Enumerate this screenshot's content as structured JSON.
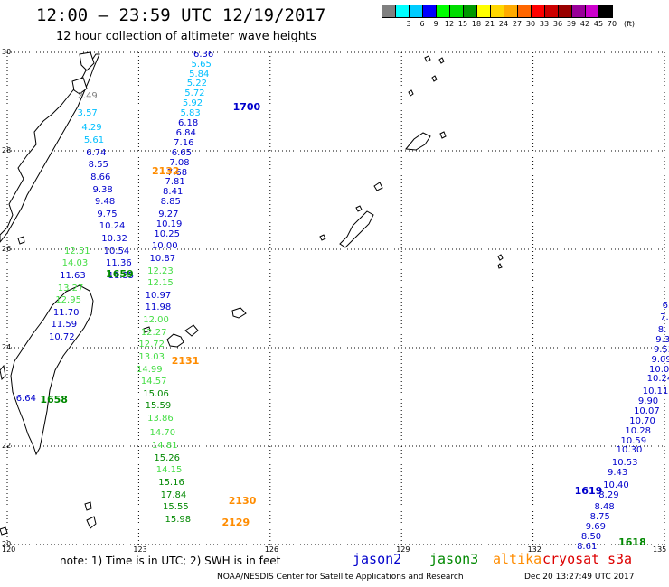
{
  "title": "12:00 — 23:59 UTC 12/19/2017",
  "subtitle": "12 hour collection of altimeter wave heights",
  "legend": {
    "unit": "(ft)",
    "levels": [
      {
        "label": "",
        "color": "#808080"
      },
      {
        "label": "3",
        "color": "#00ffff"
      },
      {
        "label": "6",
        "color": "#00ccff"
      },
      {
        "label": "9",
        "color": "#0000ff"
      },
      {
        "label": "12",
        "color": "#00ff00"
      },
      {
        "label": "15",
        "color": "#00dd00"
      },
      {
        "label": "18",
        "color": "#009900"
      },
      {
        "label": "21",
        "color": "#ffff00"
      },
      {
        "label": "24",
        "color": "#ffd700"
      },
      {
        "label": "27",
        "color": "#ffaa00"
      },
      {
        "label": "30",
        "color": "#ff6600"
      },
      {
        "label": "33",
        "color": "#ff0000"
      },
      {
        "label": "36",
        "color": "#cc0000"
      },
      {
        "label": "39",
        "color": "#990000"
      },
      {
        "label": "42",
        "color": "#990099"
      },
      {
        "label": "45",
        "color": "#cc00cc"
      },
      {
        "label": "70",
        "color": "#000000"
      }
    ]
  },
  "axes": {
    "x_ticks": [
      "120",
      "123",
      "126",
      "129",
      "132",
      "135"
    ],
    "y_ticks": [
      "30",
      "28",
      "26",
      "24",
      "22",
      "20"
    ],
    "lon_range": [
      120,
      135
    ],
    "lat_range": [
      20,
      30
    ],
    "grid": "dotted"
  },
  "colors": {
    "band_0_3": "#808080",
    "band_3_6": "#00bfff",
    "band_6_12": "#0000cc",
    "band_12_15": "#44dd44",
    "band_15_18": "#008800",
    "time_jason2": "#0000cc",
    "time_jason3": "#008800",
    "time_altika": "#ff8c00"
  },
  "tracks": [
    {
      "satellite": "jason2",
      "time_label": {
        "text": "1700",
        "lon": 125.15,
        "lat": 28.9
      },
      "points": [
        {
          "lon": 124.25,
          "lat": 29.95,
          "value": "6.36"
        },
        {
          "lon": 124.2,
          "lat": 29.75,
          "value": "5.65"
        },
        {
          "lon": 124.15,
          "lat": 29.55,
          "value": "5.84"
        },
        {
          "lon": 124.1,
          "lat": 29.35,
          "value": "5.22"
        },
        {
          "lon": 124.05,
          "lat": 29.15,
          "value": "5.72"
        },
        {
          "lon": 124.0,
          "lat": 28.95,
          "value": "5.92"
        },
        {
          "lon": 123.95,
          "lat": 28.75,
          "value": "5.83"
        },
        {
          "lon": 123.9,
          "lat": 28.55,
          "value": "6.18"
        },
        {
          "lon": 123.85,
          "lat": 28.35,
          "value": "6.84"
        },
        {
          "lon": 123.8,
          "lat": 28.15,
          "value": "7.16"
        },
        {
          "lon": 123.75,
          "lat": 27.95,
          "value": "6.65"
        },
        {
          "lon": 123.7,
          "lat": 27.75,
          "value": "7.08"
        },
        {
          "lon": 123.65,
          "lat": 27.55,
          "value": "7.68"
        },
        {
          "lon": 123.6,
          "lat": 27.35,
          "value": "7.81"
        },
        {
          "lon": 123.55,
          "lat": 27.15,
          "value": "8.41"
        },
        {
          "lon": 123.5,
          "lat": 26.95,
          "value": "8.85"
        },
        {
          "lon": 123.45,
          "lat": 26.7,
          "value": "9.27"
        },
        {
          "lon": 123.4,
          "lat": 26.5,
          "value": "10.19"
        },
        {
          "lon": 123.35,
          "lat": 26.3,
          "value": "10.25"
        },
        {
          "lon": 123.3,
          "lat": 26.05,
          "value": "10.00"
        },
        {
          "lon": 123.25,
          "lat": 25.8,
          "value": "10.87"
        },
        {
          "lon": 123.2,
          "lat": 25.55,
          "value": "12.23"
        },
        {
          "lon": 123.2,
          "lat": 25.3,
          "value": "12.15"
        },
        {
          "lon": 123.15,
          "lat": 25.05,
          "value": "10.97"
        },
        {
          "lon": 123.15,
          "lat": 24.8,
          "value": "11.98"
        },
        {
          "lon": 123.1,
          "lat": 24.55,
          "value": "12.00"
        },
        {
          "lon": 123.05,
          "lat": 24.3,
          "value": "12.27"
        },
        {
          "lon": 123.0,
          "lat": 24.05,
          "value": "12.72"
        },
        {
          "lon": 123.0,
          "lat": 23.8,
          "value": "13.03"
        },
        {
          "lon": 122.95,
          "lat": 23.55,
          "value": "14.99"
        }
      ]
    },
    {
      "satellite": "altika",
      "time_label": {
        "text": "2132",
        "lon": 123.3,
        "lat": 27.6
      },
      "points": [
        {
          "lon": 121.6,
          "lat": 29.1,
          "value": "2.49"
        },
        {
          "lon": 121.6,
          "lat": 28.75,
          "value": "3.57"
        },
        {
          "lon": 121.7,
          "lat": 28.45,
          "value": "4.29"
        },
        {
          "lon": 121.75,
          "lat": 28.2,
          "value": "5.61"
        },
        {
          "lon": 121.8,
          "lat": 27.95,
          "value": "6.74"
        },
        {
          "lon": 121.85,
          "lat": 27.7,
          "value": "8.55"
        },
        {
          "lon": 121.9,
          "lat": 27.45,
          "value": "8.66"
        },
        {
          "lon": 121.95,
          "lat": 27.2,
          "value": "9.38"
        },
        {
          "lon": 122.0,
          "lat": 26.95,
          "value": "9.48"
        },
        {
          "lon": 122.05,
          "lat": 26.7,
          "value": "9.75"
        },
        {
          "lon": 122.1,
          "lat": 26.45,
          "value": "10.24"
        },
        {
          "lon": 122.15,
          "lat": 26.2,
          "value": "10.32"
        },
        {
          "lon": 122.2,
          "lat": 25.95,
          "value": "10.54"
        },
        {
          "lon": 122.25,
          "lat": 25.7,
          "value": "11.36"
        },
        {
          "lon": 122.3,
          "lat": 25.45,
          "value": "11.35"
        }
      ]
    },
    {
      "satellite": "jason3",
      "time_label": {
        "text": "1659",
        "lon": 122.25,
        "lat": 25.5
      },
      "points": [
        {
          "lon": 121.3,
          "lat": 25.95,
          "value": "12.51"
        },
        {
          "lon": 121.25,
          "lat": 25.7,
          "value": "14.03"
        },
        {
          "lon": 121.2,
          "lat": 25.45,
          "value": "11.63"
        },
        {
          "lon": 121.15,
          "lat": 25.2,
          "value": "13.27"
        },
        {
          "lon": 121.1,
          "lat": 24.95,
          "value": "12.95"
        },
        {
          "lon": 121.05,
          "lat": 24.7,
          "value": "11.70"
        },
        {
          "lon": 121.0,
          "lat": 24.45,
          "value": "11.59"
        },
        {
          "lon": 120.95,
          "lat": 24.2,
          "value": "10.72"
        }
      ]
    },
    {
      "satellite": "jason3",
      "time_label": {
        "text": "1658",
        "lon": 120.75,
        "lat": 22.95
      },
      "points": [
        {
          "lon": 120.2,
          "lat": 22.95,
          "value": "6.64"
        }
      ]
    },
    {
      "satellite": "altika",
      "time_label": {
        "text": "2131",
        "lon": 123.75,
        "lat": 23.75
      },
      "points": [
        {
          "lon": 123.05,
          "lat": 23.3,
          "value": "14.57"
        },
        {
          "lon": 123.1,
          "lat": 23.05,
          "value": "15.06"
        },
        {
          "lon": 123.15,
          "lat": 22.8,
          "value": "15.59"
        },
        {
          "lon": 123.2,
          "lat": 22.55,
          "value": "13.86"
        },
        {
          "lon": 123.25,
          "lat": 22.25,
          "value": "14.70"
        },
        {
          "lon": 123.3,
          "lat": 22.0,
          "value": "14.81"
        },
        {
          "lon": 123.35,
          "lat": 21.75,
          "value": "15.26"
        },
        {
          "lon": 123.4,
          "lat": 21.5,
          "value": "14.15"
        },
        {
          "lon": 123.45,
          "lat": 21.25,
          "value": "15.16"
        },
        {
          "lon": 123.5,
          "lat": 21.0,
          "value": "17.84"
        },
        {
          "lon": 123.55,
          "lat": 20.75,
          "value": "15.55"
        },
        {
          "lon": 123.6,
          "lat": 20.5,
          "value": "15.98"
        }
      ]
    },
    {
      "satellite": "altika",
      "time_label": {
        "text": "2130",
        "lon": 125.05,
        "lat": 20.9
      },
      "points": []
    },
    {
      "satellite": "altika",
      "time_label": {
        "text": "2129",
        "lon": 124.9,
        "lat": 20.45
      },
      "points": []
    },
    {
      "satellite": "jason2",
      "time_label": {
        "text": "1619",
        "lon": 132.95,
        "lat": 21.1
      },
      "points": [
        {
          "lon": 134.95,
          "lat": 24.85,
          "value": "6."
        },
        {
          "lon": 134.9,
          "lat": 24.6,
          "value": "7."
        },
        {
          "lon": 134.85,
          "lat": 24.35,
          "value": "8."
        },
        {
          "lon": 134.8,
          "lat": 24.15,
          "value": "9.3"
        },
        {
          "lon": 134.75,
          "lat": 23.95,
          "value": "9.53"
        },
        {
          "lon": 134.7,
          "lat": 23.75,
          "value": "9.09"
        },
        {
          "lon": 134.65,
          "lat": 23.55,
          "value": "10.06"
        },
        {
          "lon": 134.6,
          "lat": 23.35,
          "value": "10.24"
        },
        {
          "lon": 134.5,
          "lat": 23.1,
          "value": "10.11"
        },
        {
          "lon": 134.4,
          "lat": 22.9,
          "value": "9.90"
        },
        {
          "lon": 134.3,
          "lat": 22.7,
          "value": "10.07"
        },
        {
          "lon": 134.2,
          "lat": 22.5,
          "value": "10.70"
        },
        {
          "lon": 134.1,
          "lat": 22.3,
          "value": "10.28"
        },
        {
          "lon": 134.0,
          "lat": 22.1,
          "value": "10.59"
        },
        {
          "lon": 133.9,
          "lat": 21.9,
          "value": "10.30"
        },
        {
          "lon": 133.8,
          "lat": 21.65,
          "value": "10.53"
        },
        {
          "lon": 133.7,
          "lat": 21.45,
          "value": "9.43"
        },
        {
          "lon": 133.6,
          "lat": 21.2,
          "value": "10.40"
        },
        {
          "lon": 133.5,
          "lat": 21.0,
          "value": "8.29"
        },
        {
          "lon": 133.4,
          "lat": 20.75,
          "value": "8.48"
        },
        {
          "lon": 133.3,
          "lat": 20.55,
          "value": "8.75"
        },
        {
          "lon": 133.2,
          "lat": 20.35,
          "value": "9.69"
        },
        {
          "lon": 133.1,
          "lat": 20.15,
          "value": "8.50"
        },
        {
          "lon": 133.0,
          "lat": 19.95,
          "value": "8.61"
        }
      ]
    },
    {
      "satellite": "jason3",
      "time_label": {
        "text": "1618",
        "lon": 133.95,
        "lat": 20.05
      },
      "points": []
    }
  ],
  "footer": {
    "note": "note:  1) Time is in UTC;  2) SWH is in feet",
    "satellites": [
      {
        "name": "jason2",
        "color": "#0000cc"
      },
      {
        "name": "jason3",
        "color": "#008800"
      },
      {
        "name": "altika",
        "color": "#ff8c00"
      },
      {
        "name": "cryosat",
        "color": "#dd0000"
      },
      {
        "name": "s3a",
        "color": "#dd0000"
      }
    ],
    "credit": "NOAA/NESDIS Center for Satellite Applications and Research",
    "timestamp": "Dec 20 13:27:49 UTC 2017"
  }
}
